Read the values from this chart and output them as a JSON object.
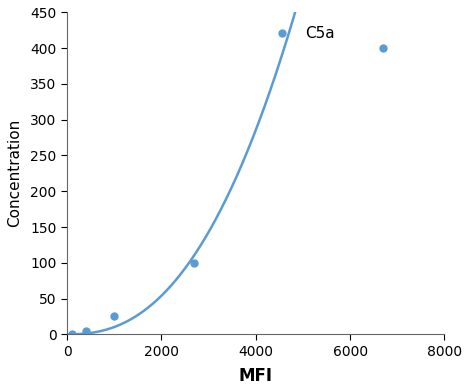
{
  "x": [
    0,
    100,
    400,
    1000,
    2700,
    6700
  ],
  "y": [
    0,
    0,
    5,
    25,
    100,
    400
  ],
  "line_color": "#5B9BD5",
  "marker_color": "#5B9BD5",
  "marker_x": [
    100,
    400,
    1000,
    2700,
    6700
  ],
  "marker_y": [
    0,
    5,
    25,
    100,
    400
  ],
  "xlabel": "MFI",
  "ylabel": "Concentration",
  "legend_label": "C5a",
  "xlim": [
    0,
    8000
  ],
  "ylim": [
    0,
    450
  ],
  "xticks": [
    0,
    2000,
    4000,
    6000,
    8000
  ],
  "yticks": [
    0,
    50,
    100,
    150,
    200,
    250,
    300,
    350,
    400,
    450
  ],
  "xlabel_fontsize": 12,
  "ylabel_fontsize": 11,
  "legend_fontsize": 11,
  "tick_fontsize": 10,
  "background_color": "#ffffff"
}
